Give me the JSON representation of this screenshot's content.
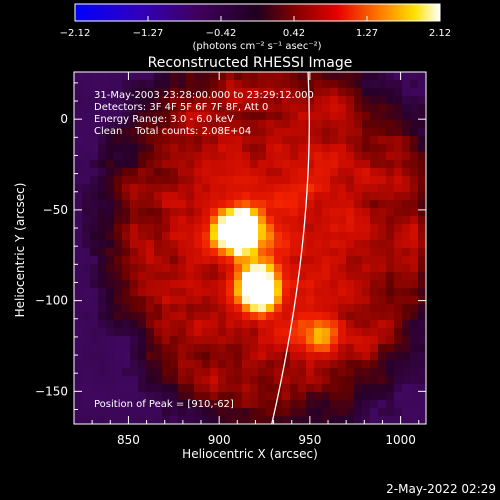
{
  "chart_data": {
    "type": "heatmap",
    "title": "Reconstructed RHESSI Image",
    "xlabel": "Heliocentric X (arcsec)",
    "ylabel": "Heliocentric Y (arcsec)",
    "xlim": [
      820,
      1014
    ],
    "ylim": [
      -168,
      26
    ],
    "x_ticks": [
      850,
      900,
      950,
      1000
    ],
    "y_ticks": [
      0,
      -50,
      -100,
      -150
    ],
    "colorbar": {
      "min": -2.12,
      "max": 2.12,
      "ticks": [
        "-2.12",
        "-1.27",
        "-0.42",
        "0.42",
        "1.27",
        "2.12"
      ],
      "label": "(photons cm⁻² s⁻¹ asec⁻²)"
    },
    "annotations": {
      "time": "31-May-2003 23:28:00.000 to 23:29:12.000",
      "detectors": "Detectors: 3F 4F 5F 6F 7F 8F, Att 0",
      "energy": "Energy Range: 3.0 - 6.0 keV",
      "method": "Clean    Total counts: 2.08E+04",
      "peak": "Position of Peak = [910,-62]"
    },
    "sources": [
      {
        "x": 910,
        "y": -62,
        "peak": 2.12
      },
      {
        "x": 921,
        "y": -95,
        "peak": 1.85
      },
      {
        "x": 957,
        "y": -120,
        "peak": 0.85
      }
    ],
    "limb_arc": {
      "x_top": 949,
      "x_bottom": 929
    },
    "timestamp": "2-May-2022 02:29"
  },
  "colors": {
    "background": "#000000",
    "limb": "#ffffff"
  }
}
